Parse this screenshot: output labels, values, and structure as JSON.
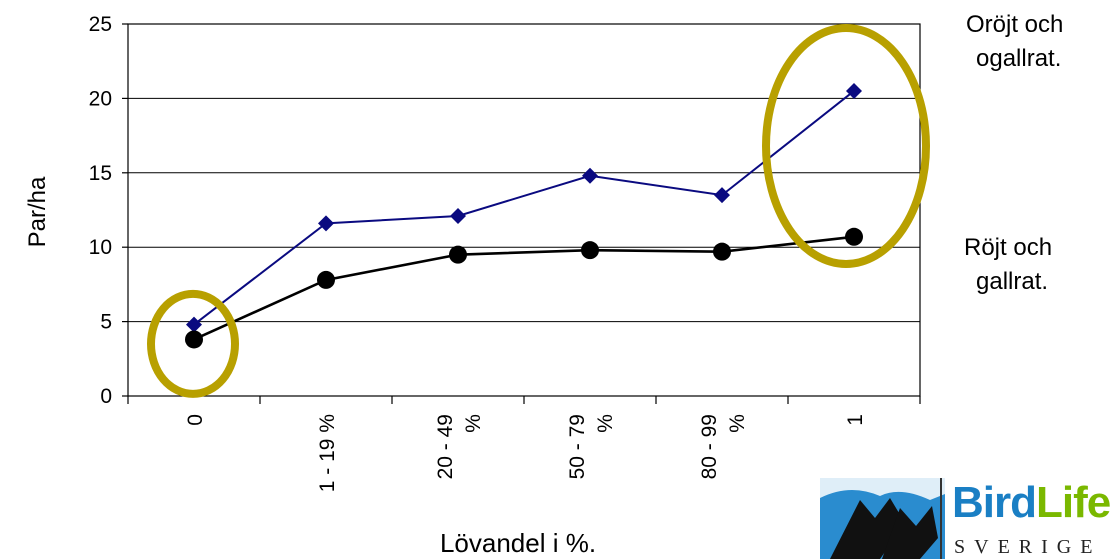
{
  "chart_data": {
    "type": "line",
    "categories": [
      "0",
      "1 - 19 %",
      "20 - 49 %",
      "50 - 79 %",
      "80 - 99 %",
      "1"
    ],
    "series": [
      {
        "name": "Oröjt och ogallrat.",
        "values": [
          4.8,
          11.6,
          12.1,
          14.8,
          13.5,
          20.5
        ],
        "color": "#0a0a80",
        "marker": "diamond"
      },
      {
        "name": "Röjt och gallrat.",
        "values": [
          3.8,
          7.8,
          9.5,
          9.8,
          9.7,
          10.7
        ],
        "color": "#000000",
        "marker": "circle"
      }
    ],
    "ylabel": "Par/ha",
    "xlabel": "Lövandel i %.",
    "ylim": [
      0,
      25
    ],
    "yticks": [
      "0",
      "5",
      "10",
      "15",
      "20",
      "25"
    ],
    "grid": "horizontal",
    "highlight_color": "#b8a000"
  },
  "legend": {
    "series1_line1": "Oröjt och",
    "series1_line2": "ogallrat.",
    "series2_line1": "Röjt och",
    "series2_line2": "gallrat."
  },
  "logo": {
    "text_bird": "Bird",
    "text_life": "Life",
    "subtext": "SVERIGE",
    "color_bird": "#1a7fc4",
    "color_life": "#7ab800"
  }
}
